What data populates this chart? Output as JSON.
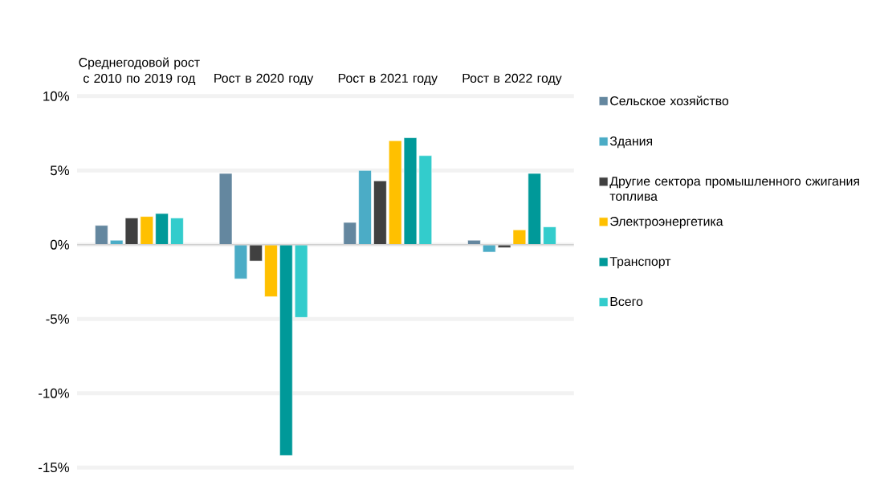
{
  "chart_data": {
    "type": "bar",
    "categories": [
      "Среднегодовой рост с 2010 по 2019 год",
      "Рост в 2020 году",
      "Рост в 2021 году",
      "Рост в 2022 году"
    ],
    "series": [
      {
        "name": "Сельское хозяйство",
        "color": "#64879f",
        "values": [
          1.3,
          4.8,
          1.5,
          0.3
        ]
      },
      {
        "name": "Здания",
        "color": "#4bacc6",
        "values": [
          0.3,
          -2.3,
          5.0,
          -0.5
        ]
      },
      {
        "name": "Другие сектора промышленного сжигания топлива",
        "color": "#404040",
        "values": [
          1.8,
          -1.1,
          4.3,
          -0.2
        ]
      },
      {
        "name": "Электроэнергетика",
        "color": "#ffc000",
        "values": [
          1.9,
          -3.5,
          7.0,
          1.0
        ]
      },
      {
        "name": "Транспорт",
        "color": "#009999",
        "values": [
          2.1,
          -14.2,
          7.2,
          4.8
        ]
      },
      {
        "name": "Всего",
        "color": "#33cccc",
        "values": [
          1.8,
          -4.9,
          6.0,
          1.2
        ]
      }
    ],
    "ylim": [
      -15,
      10
    ],
    "yticks": [
      {
        "value": -15,
        "label": "-15%"
      },
      {
        "value": -10,
        "label": "-10%"
      },
      {
        "value": -5,
        "label": "-5%"
      },
      {
        "value": 0,
        "label": "0%"
      },
      {
        "value": 5,
        "label": "5%"
      },
      {
        "value": 10,
        "label": "10%"
      }
    ],
    "grid": "y",
    "legend": "right"
  }
}
